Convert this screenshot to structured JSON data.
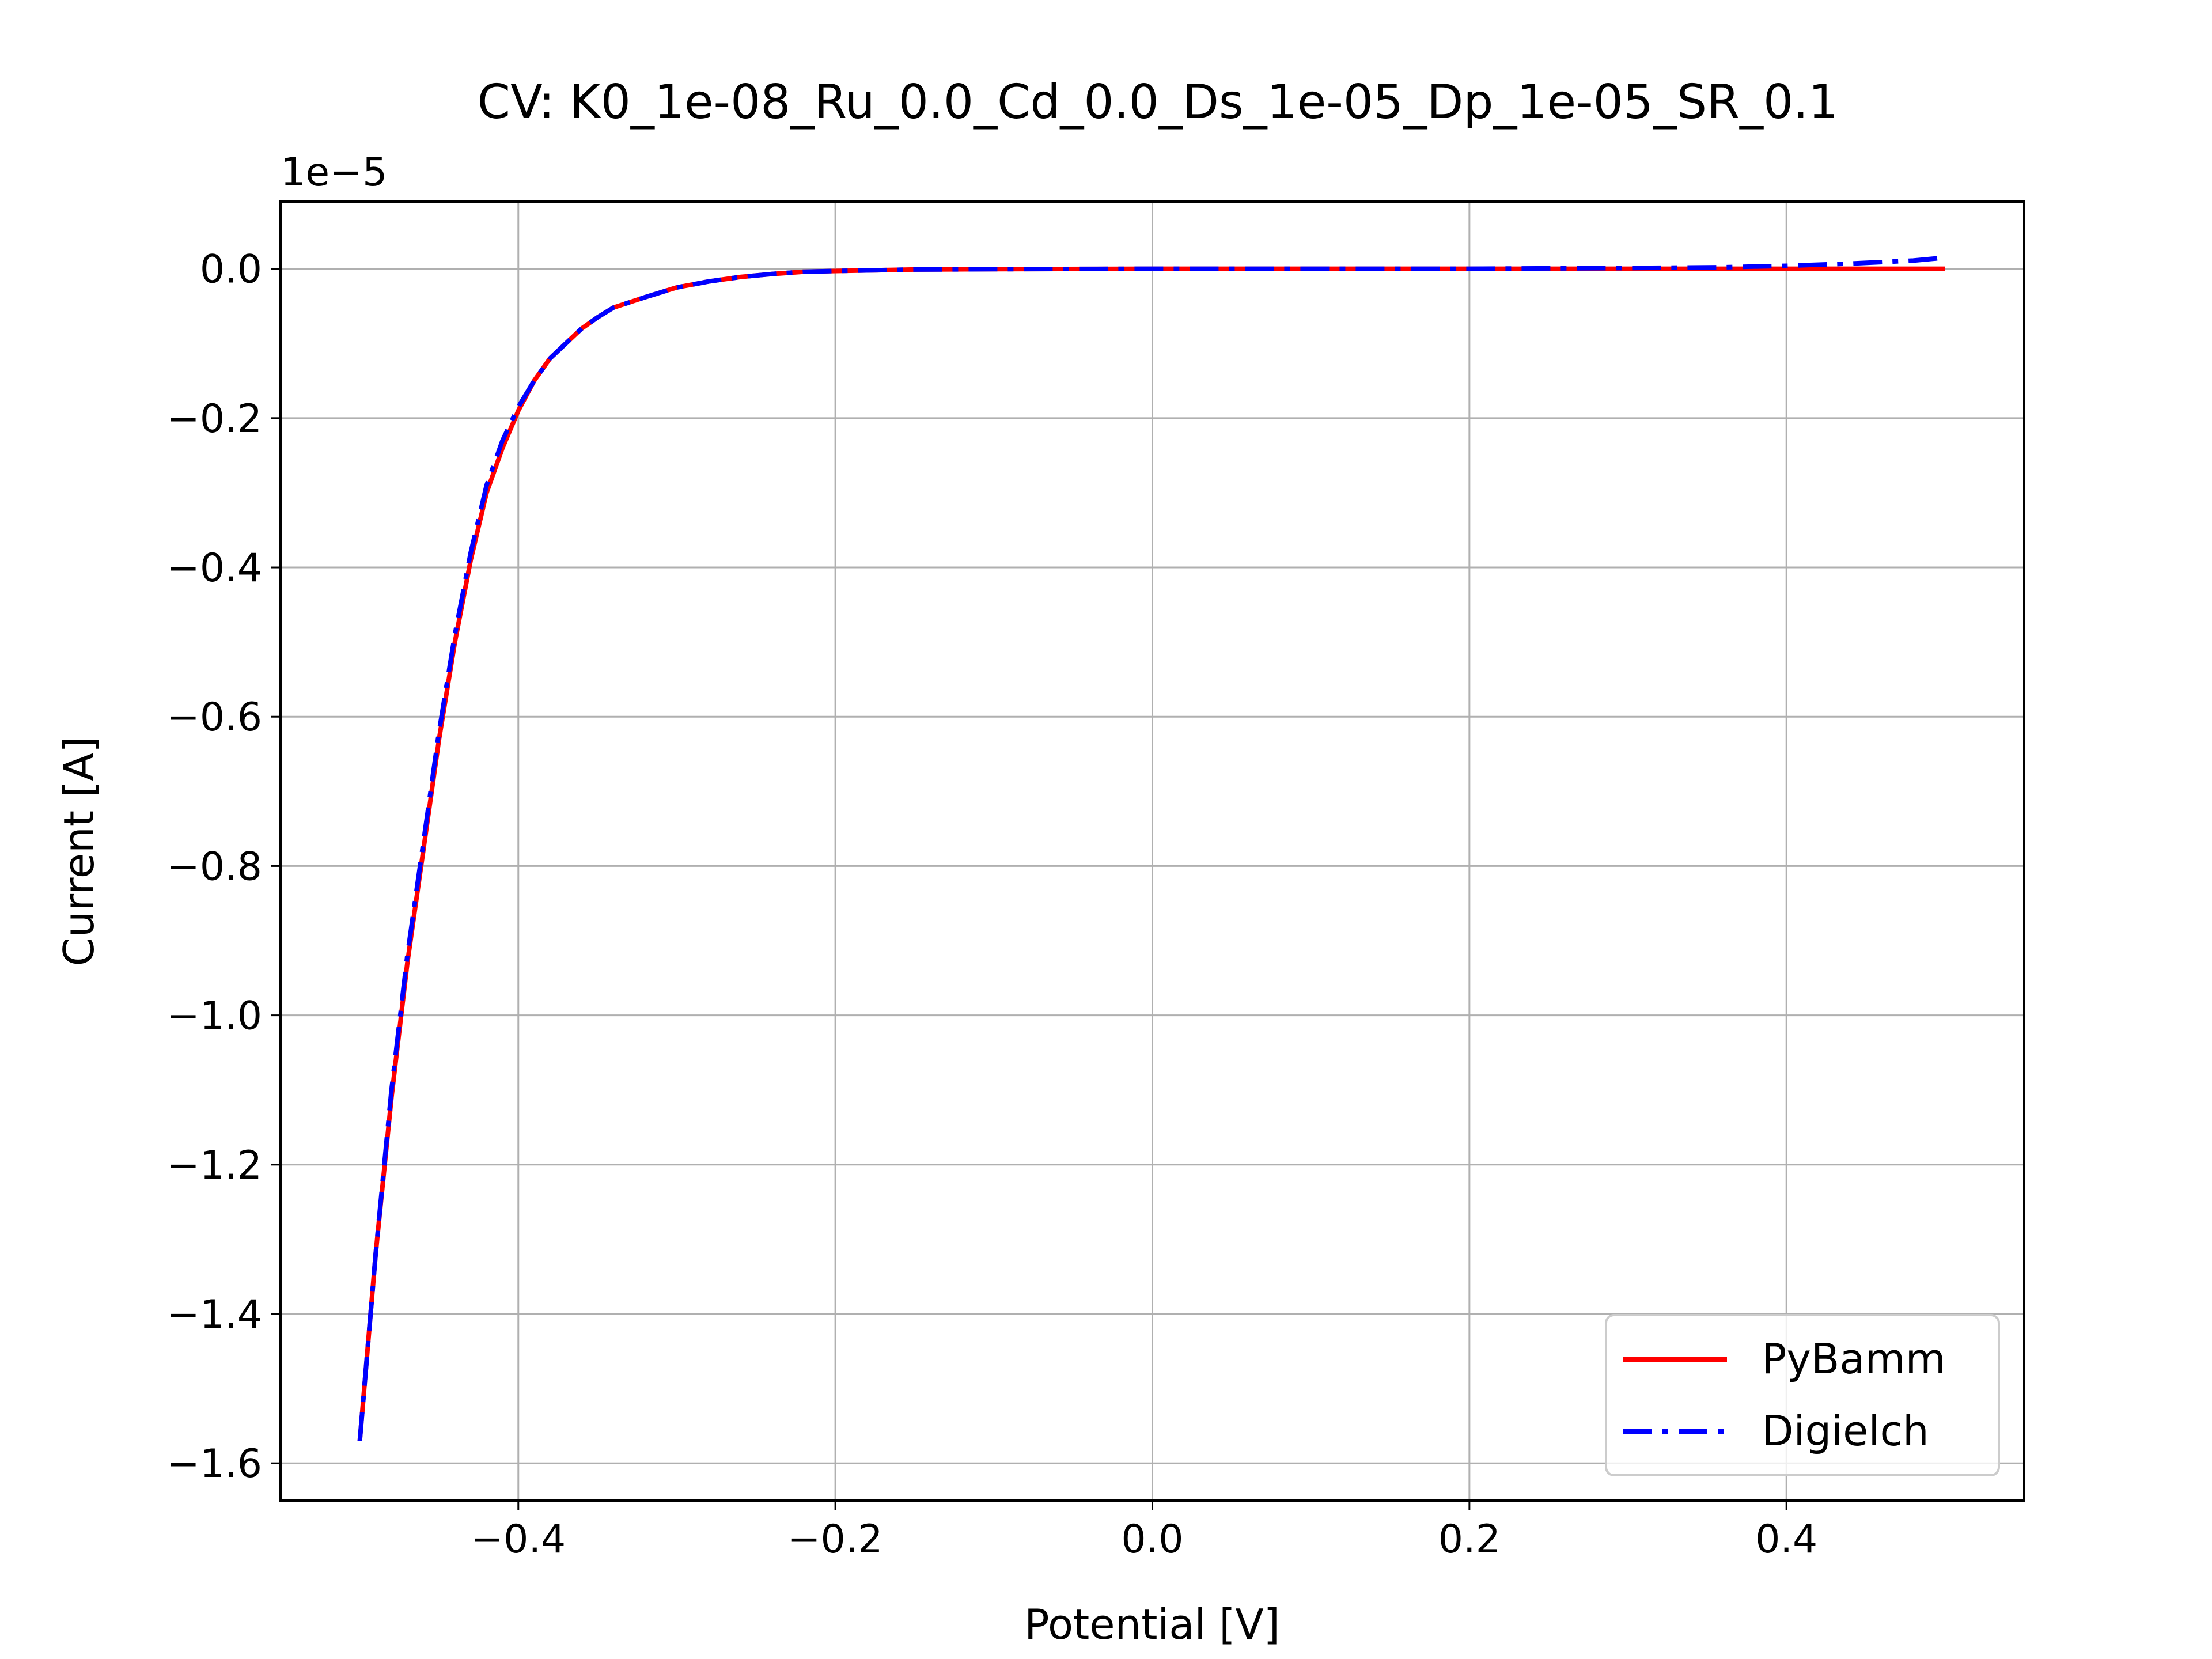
{
  "chart_data": {
    "type": "line",
    "title": "CV: K0_1e-08_Ru_0.0_Cd_0.0_Ds_1e-05_Dp_1e-05_SR_0.1",
    "xlabel": "Potential [V]",
    "ylabel": "Current [A]",
    "y_offset_label": "1e−5",
    "xlim": [
      -0.55,
      0.55
    ],
    "ylim": [
      -1.65,
      0.09
    ],
    "xticks": [
      -0.4,
      -0.2,
      0.0,
      0.2,
      0.4
    ],
    "xtick_labels": [
      "−0.4",
      "−0.2",
      "0.0",
      "0.2",
      "0.4"
    ],
    "yticks": [
      0.0,
      -0.2,
      -0.4,
      -0.6,
      -0.8,
      -1.0,
      -1.2,
      -1.4,
      -1.6
    ],
    "ytick_labels": [
      "0.0",
      "−0.2",
      "−0.4",
      "−0.6",
      "−0.8",
      "−1.0",
      "−1.2",
      "−1.4",
      "−1.6"
    ],
    "grid": true,
    "legend_position": "lower-right",
    "series": [
      {
        "name": "PyBamm",
        "color": "#ff0000",
        "style": "solid",
        "x": [
          -0.5,
          -0.49,
          -0.48,
          -0.47,
          -0.46,
          -0.45,
          -0.44,
          -0.43,
          -0.42,
          -0.41,
          -0.4,
          -0.39,
          -0.38,
          -0.37,
          -0.36,
          -0.35,
          -0.34,
          -0.33,
          -0.32,
          -0.3,
          -0.28,
          -0.26,
          -0.24,
          -0.22,
          -0.2,
          -0.15,
          -0.1,
          0.0,
          0.1,
          0.2,
          0.3,
          0.4,
          0.5
        ],
        "y": [
          -1.57,
          -1.32,
          -1.11,
          -0.93,
          -0.78,
          -0.63,
          -0.5,
          -0.39,
          -0.3,
          -0.24,
          -0.19,
          -0.15,
          -0.12,
          -0.1,
          -0.08,
          -0.065,
          -0.052,
          -0.045,
          -0.038,
          -0.025,
          -0.017,
          -0.011,
          -0.007,
          -0.004,
          -0.003,
          -0.001,
          -0.0005,
          0.0,
          0.0,
          0.0,
          0.0,
          0.0,
          0.0
        ]
      },
      {
        "name": "Digielch",
        "color": "#0000ff",
        "style": "dashdot",
        "x": [
          -0.5,
          -0.49,
          -0.48,
          -0.47,
          -0.46,
          -0.45,
          -0.44,
          -0.43,
          -0.42,
          -0.41,
          -0.4,
          -0.39,
          -0.38,
          -0.37,
          -0.36,
          -0.35,
          -0.34,
          -0.33,
          -0.32,
          -0.3,
          -0.28,
          -0.26,
          -0.24,
          -0.22,
          -0.2,
          -0.15,
          -0.1,
          0.0,
          0.1,
          0.2,
          0.3,
          0.36,
          0.4,
          0.44,
          0.48,
          0.5
        ],
        "y": [
          -1.57,
          -1.32,
          -1.1,
          -0.92,
          -0.77,
          -0.62,
          -0.49,
          -0.38,
          -0.29,
          -0.23,
          -0.185,
          -0.15,
          -0.12,
          -0.1,
          -0.08,
          -0.065,
          -0.052,
          -0.045,
          -0.038,
          -0.025,
          -0.017,
          -0.011,
          -0.007,
          -0.004,
          -0.003,
          -0.001,
          -0.0005,
          0.0,
          0.0,
          0.0,
          0.001,
          0.002,
          0.004,
          0.007,
          0.011,
          0.015
        ]
      }
    ]
  }
}
